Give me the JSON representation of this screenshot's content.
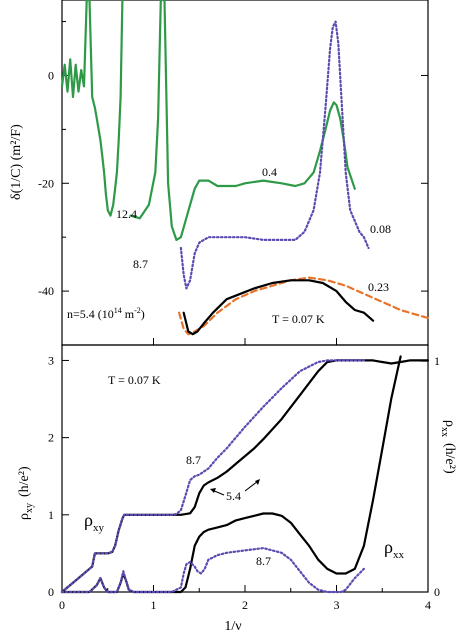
{
  "chart_data": [
    {
      "type": "line",
      "panel": "top",
      "ylabel": "δ(1/C)  (m²/F)",
      "xlim": [
        0,
        4
      ],
      "ylim": [
        -50,
        14
      ],
      "yticks": [
        0,
        -20,
        -40
      ],
      "ytick_labels": [
        "0",
        "-20",
        "-40"
      ],
      "grid": false,
      "series": [
        {
          "name": "12.4",
          "color": "#2e9a48",
          "style": "solid",
          "x": [
            0.0,
            0.03,
            0.06,
            0.09,
            0.12,
            0.15,
            0.18,
            0.21,
            0.24,
            0.27,
            0.3,
            0.33,
            0.36,
            0.38,
            0.4,
            0.42,
            0.44,
            0.46,
            0.48,
            0.5,
            0.53,
            0.56,
            0.58,
            0.6,
            0.62,
            0.64,
            0.66
          ],
          "y": [
            -2,
            2,
            -3,
            3,
            -4,
            2,
            -3,
            1,
            -2,
            14,
            14,
            -4,
            -6,
            -8,
            -10,
            -12,
            -15,
            -18,
            -22,
            -25,
            -26,
            -24,
            -21,
            -18,
            -12,
            -4,
            14
          ]
        },
        {
          "name": "8.7",
          "color": "#2e9a48",
          "style": "solid",
          "x": [
            0.75,
            0.85,
            0.95,
            1.02,
            1.05,
            1.08,
            1.12,
            1.16,
            1.2,
            1.25,
            1.3,
            1.35,
            1.4,
            1.45,
            1.5
          ],
          "y": [
            -26,
            -26.5,
            -24,
            -18,
            -8,
            14,
            14,
            -20,
            -28,
            -30.5,
            -30,
            -27,
            -24,
            -21,
            -19.5
          ]
        },
        {
          "name": "0.4",
          "color": "#2e9a48",
          "style": "solid",
          "x": [
            1.5,
            1.6,
            1.7,
            1.8,
            1.9,
            2.0,
            2.2,
            2.4,
            2.55,
            2.65,
            2.75,
            2.82,
            2.88,
            2.93,
            2.97,
            3.0,
            3.04,
            3.08,
            3.12,
            3.16,
            3.2
          ],
          "y": [
            -19.5,
            -19.5,
            -20.5,
            -20.5,
            -20.5,
            -20,
            -19.5,
            -20,
            -20.5,
            -20,
            -18,
            -14,
            -10,
            -6.5,
            -5,
            -5.5,
            -8,
            -12,
            -17,
            -19,
            -21
          ]
        },
        {
          "name": "0.08",
          "color": "#5a4bb0",
          "style": "dotted",
          "x": [
            1.3,
            1.33,
            1.36,
            1.4,
            1.45,
            1.5,
            1.6,
            1.8,
            2.0,
            2.2,
            2.4,
            2.55,
            2.65,
            2.75,
            2.82,
            2.88,
            2.93,
            2.96,
            2.99,
            3.02,
            3.06,
            3.1,
            3.15,
            3.2,
            3.25,
            3.3,
            3.35
          ],
          "y": [
            -32,
            -37,
            -39.5,
            -38,
            -33,
            -31,
            -30,
            -30,
            -30,
            -30.5,
            -30.5,
            -30.5,
            -29,
            -25,
            -18,
            -6,
            5,
            9,
            10,
            6,
            -6,
            -18,
            -25,
            -27,
            -29,
            -30,
            -32
          ]
        },
        {
          "name": "0.23",
          "color": "#e8732a",
          "style": "dashed",
          "x": [
            1.28,
            1.33,
            1.38,
            1.45,
            1.55,
            1.7,
            1.9,
            2.1,
            2.3,
            2.5,
            2.7,
            2.9,
            3.1,
            3.3,
            3.5,
            3.7,
            3.9,
            4.0
          ],
          "y": [
            -44,
            -47,
            -48,
            -47.5,
            -46.5,
            -44,
            -41.5,
            -40,
            -39,
            -38,
            -37.5,
            -38,
            -39,
            -40.5,
            -42,
            -43.5,
            -44.5,
            -45
          ]
        },
        {
          "name": "T = 0.07 K",
          "color": "#000000",
          "style": "solid",
          "x": [
            1.33,
            1.38,
            1.43,
            1.48,
            1.55,
            1.65,
            1.8,
            1.95,
            2.1,
            2.3,
            2.5,
            2.7,
            2.85,
            3.0,
            3.1,
            3.2,
            3.3,
            3.4
          ],
          "y": [
            -44,
            -47.5,
            -48,
            -47.5,
            -46,
            -44,
            -41.5,
            -40.5,
            -39.5,
            -38.5,
            -38,
            -38,
            -38.5,
            -40,
            -42,
            -43.5,
            -44,
            -45.5
          ]
        }
      ],
      "annotations": [
        "12.4",
        "8.7",
        "0.4",
        "0.08",
        "0.23",
        "T = 0.07 K"
      ],
      "caption": "n=5.4 (10¹⁴ m⁻²)"
    },
    {
      "type": "line",
      "panel": "bottom",
      "xlabel": "1/ν",
      "ylabel_left": "ρ_xy  (h/e²)",
      "ylabel_right": "ρ_xx  (h/e²)",
      "xlim": [
        0,
        4
      ],
      "ylim_left": [
        0,
        3.2
      ],
      "ylim_right": [
        0,
        1.07
      ],
      "xticks": [
        0,
        1,
        2,
        3,
        4
      ],
      "xtick_labels": [
        "0",
        "1",
        "2",
        "3",
        "4"
      ],
      "yticks_left": [
        0,
        1,
        2,
        3
      ],
      "ytick_labels_left": [
        "0",
        "1",
        "2",
        "3"
      ],
      "yticks_right": [
        0,
        1
      ],
      "ytick_labels_right": [
        "0",
        "1"
      ],
      "grid": false,
      "title": "T = 0.07 K",
      "series": [
        {
          "name": "ρxy 5.4",
          "axis": "left",
          "color": "#000000",
          "style": "solid",
          "x": [
            0.0,
            0.2,
            0.3,
            0.33,
            0.36,
            0.5,
            0.55,
            0.58,
            0.62,
            0.66,
            0.68,
            0.7,
            0.72,
            0.8,
            0.9,
            1.0,
            1.1,
            1.2,
            1.3,
            1.4,
            1.45,
            1.5,
            1.55,
            1.6,
            1.7,
            1.8,
            1.9,
            2.0,
            2.1,
            2.2,
            2.4,
            2.6,
            2.8,
            2.9,
            3.0,
            3.1,
            3.2,
            3.3,
            3.4,
            3.5,
            3.6,
            3.7,
            3.8,
            3.9,
            4.0
          ],
          "y": [
            0.0,
            0.2,
            0.3,
            0.33,
            0.5,
            0.5,
            0.52,
            0.6,
            0.8,
            0.95,
            1.0,
            1.0,
            1.0,
            1.0,
            1.0,
            1.0,
            1.0,
            1.0,
            1.0,
            1.02,
            1.1,
            1.28,
            1.38,
            1.42,
            1.48,
            1.56,
            1.66,
            1.76,
            1.86,
            1.98,
            2.24,
            2.55,
            2.86,
            2.98,
            3.0,
            3.0,
            3.0,
            3.0,
            3.0,
            2.98,
            2.96,
            2.98,
            3.0,
            3.0,
            3.0
          ]
        },
        {
          "name": "ρxy 8.7",
          "axis": "left",
          "color": "#5a4bb0",
          "style": "dotted",
          "x": [
            0.0,
            0.2,
            0.3,
            0.33,
            0.36,
            0.5,
            0.55,
            0.58,
            0.62,
            0.66,
            0.68,
            0.8,
            1.0,
            1.2,
            1.25,
            1.3,
            1.35,
            1.4,
            1.45,
            1.5,
            1.6,
            1.7,
            1.8,
            1.9,
            2.0,
            2.2,
            2.4,
            2.6,
            2.8,
            2.9,
            3.0,
            3.1,
            3.2,
            3.3
          ],
          "y": [
            0.0,
            0.2,
            0.3,
            0.33,
            0.5,
            0.5,
            0.52,
            0.6,
            0.8,
            0.95,
            1.0,
            1.0,
            1.0,
            1.0,
            1.01,
            1.06,
            1.25,
            1.45,
            1.5,
            1.52,
            1.6,
            1.74,
            1.86,
            2.0,
            2.14,
            2.4,
            2.64,
            2.86,
            2.98,
            3.0,
            3.0,
            3.0,
            3.0,
            3.0
          ]
        },
        {
          "name": "ρxx 5.4",
          "axis": "right",
          "color": "#000000",
          "style": "solid",
          "x": [
            0.0,
            0.3,
            0.38,
            0.42,
            0.46,
            0.5,
            0.6,
            0.64,
            0.67,
            0.7,
            0.73,
            0.78,
            0.9,
            1.0,
            1.2,
            1.3,
            1.35,
            1.4,
            1.45,
            1.5,
            1.55,
            1.6,
            1.7,
            1.8,
            1.9,
            2.0,
            2.1,
            2.2,
            2.25,
            2.3,
            2.4,
            2.5,
            2.6,
            2.7,
            2.8,
            2.9,
            3.0,
            3.1,
            3.2,
            3.3,
            3.4,
            3.5,
            3.6,
            3.7
          ],
          "y": [
            0.0,
            0.0,
            0.03,
            0.06,
            0.02,
            0.0,
            0.0,
            0.04,
            0.08,
            0.05,
            0.01,
            0.0,
            0.0,
            0.0,
            0.0,
            0.0,
            0.02,
            0.1,
            0.2,
            0.24,
            0.26,
            0.27,
            0.28,
            0.29,
            0.31,
            0.32,
            0.33,
            0.34,
            0.34,
            0.34,
            0.33,
            0.3,
            0.25,
            0.2,
            0.14,
            0.1,
            0.08,
            0.08,
            0.1,
            0.2,
            0.4,
            0.62,
            0.84,
            1.02
          ]
        },
        {
          "name": "ρxx 8.7",
          "axis": "right",
          "color": "#5a4bb0",
          "style": "dotted",
          "x": [
            0.0,
            0.3,
            0.38,
            0.42,
            0.46,
            0.5,
            0.6,
            0.64,
            0.67,
            0.7,
            0.73,
            0.78,
            1.0,
            1.2,
            1.3,
            1.33,
            1.36,
            1.4,
            1.45,
            1.48,
            1.52,
            1.56,
            1.6,
            1.7,
            1.8,
            2.0,
            2.2,
            2.3,
            2.4,
            2.5,
            2.6,
            2.7,
            2.8,
            2.9,
            3.0,
            3.05,
            3.1,
            3.2,
            3.3
          ],
          "y": [
            0.0,
            0.0,
            0.03,
            0.06,
            0.02,
            0.0,
            0.0,
            0.04,
            0.09,
            0.05,
            0.01,
            0.0,
            0.0,
            0.0,
            0.02,
            0.08,
            0.12,
            0.13,
            0.11,
            0.09,
            0.08,
            0.1,
            0.14,
            0.16,
            0.17,
            0.18,
            0.19,
            0.18,
            0.17,
            0.14,
            0.09,
            0.04,
            0.01,
            0.0,
            0.0,
            0.0,
            0.01,
            0.06,
            0.1
          ]
        }
      ],
      "annotations": [
        "8.7",
        "5.4",
        "8.7",
        "ρxy",
        "ρxx"
      ]
    }
  ],
  "labels": {
    "top_ylabel": "δ(1/C)  (m²/F)",
    "bottom_ylabel_left": "ρ",
    "bottom_ylabel_left_sub": "xy",
    "bottom_ylabel_left_unit": "(h/e²)",
    "bottom_ylabel_right": "ρ",
    "bottom_ylabel_right_sub": "xx",
    "bottom_ylabel_right_unit": "(h/e²)",
    "xlabel": "1/ν",
    "top_ann_124": "12.4",
    "top_ann_87": "8.7",
    "top_ann_04": "0.4",
    "top_ann_008": "0.08",
    "top_ann_023": "0.23",
    "top_ann_T": "T = 0.07 K",
    "top_caption_n": "n=5.4 (10",
    "top_caption_exp": "14",
    "top_caption_unit": " m",
    "top_caption_exp2": "-2",
    "top_caption_close": ")",
    "bottom_title": "T = 0.07 K",
    "bottom_ann_87a": "8.7",
    "bottom_ann_54": "5.4",
    "bottom_ann_87b": "8.7",
    "bottom_rho_xy": "ρ",
    "bottom_rho_xy_sub": "xy",
    "bottom_rho_xx": "ρ",
    "bottom_rho_xx_sub": "xx"
  }
}
